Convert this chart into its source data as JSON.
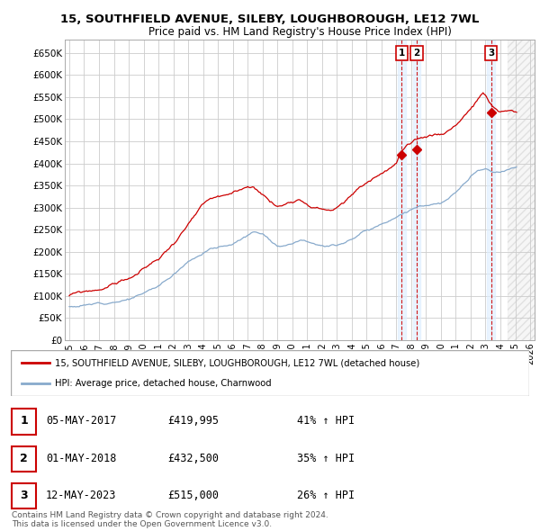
{
  "title": "15, SOUTHFIELD AVENUE, SILEBY, LOUGHBOROUGH, LE12 7WL",
  "subtitle": "Price paid vs. HM Land Registry's House Price Index (HPI)",
  "red_label": "15, SOUTHFIELD AVENUE, SILEBY, LOUGHBOROUGH, LE12 7WL (detached house)",
  "blue_label": "HPI: Average price, detached house, Charnwood",
  "copyright": "Contains HM Land Registry data © Crown copyright and database right 2024.\nThis data is licensed under the Open Government Licence v3.0.",
  "sale_points": [
    {
      "num": 1,
      "date": "05-MAY-2017",
      "price": 419995,
      "pct": "41%",
      "dir": "↑",
      "x_year": 2017.37
    },
    {
      "num": 2,
      "date": "01-MAY-2018",
      "price": 432500,
      "pct": "35%",
      "dir": "↑",
      "x_year": 2018.37
    },
    {
      "num": 3,
      "date": "12-MAY-2023",
      "price": 515000,
      "pct": "26%",
      "dir": "↑",
      "x_year": 2023.37
    }
  ],
  "ylim": [
    0,
    680000
  ],
  "xlim": [
    1994.7,
    2026.3
  ],
  "yticks": [
    0,
    50000,
    100000,
    150000,
    200000,
    250000,
    300000,
    350000,
    400000,
    450000,
    500000,
    550000,
    600000,
    650000
  ],
  "ytick_labels": [
    "£0",
    "£50K",
    "£100K",
    "£150K",
    "£200K",
    "£250K",
    "£300K",
    "£350K",
    "£400K",
    "£450K",
    "£500K",
    "£550K",
    "£600K",
    "£650K"
  ],
  "xticks": [
    1995,
    1996,
    1997,
    1998,
    1999,
    2000,
    2001,
    2002,
    2003,
    2004,
    2005,
    2006,
    2007,
    2008,
    2009,
    2010,
    2011,
    2012,
    2013,
    2014,
    2015,
    2016,
    2017,
    2018,
    2019,
    2020,
    2021,
    2022,
    2023,
    2024,
    2025,
    2026
  ],
  "red_color": "#cc0000",
  "blue_color": "#88aacc",
  "marker_color": "#cc0000",
  "vline_color": "#cc0000",
  "grid_color": "#cccccc",
  "bg_color": "#ffffff",
  "table_border_color": "#cc0000",
  "shade_color": "#ddeeff",
  "hatch_color": "#dddddd"
}
